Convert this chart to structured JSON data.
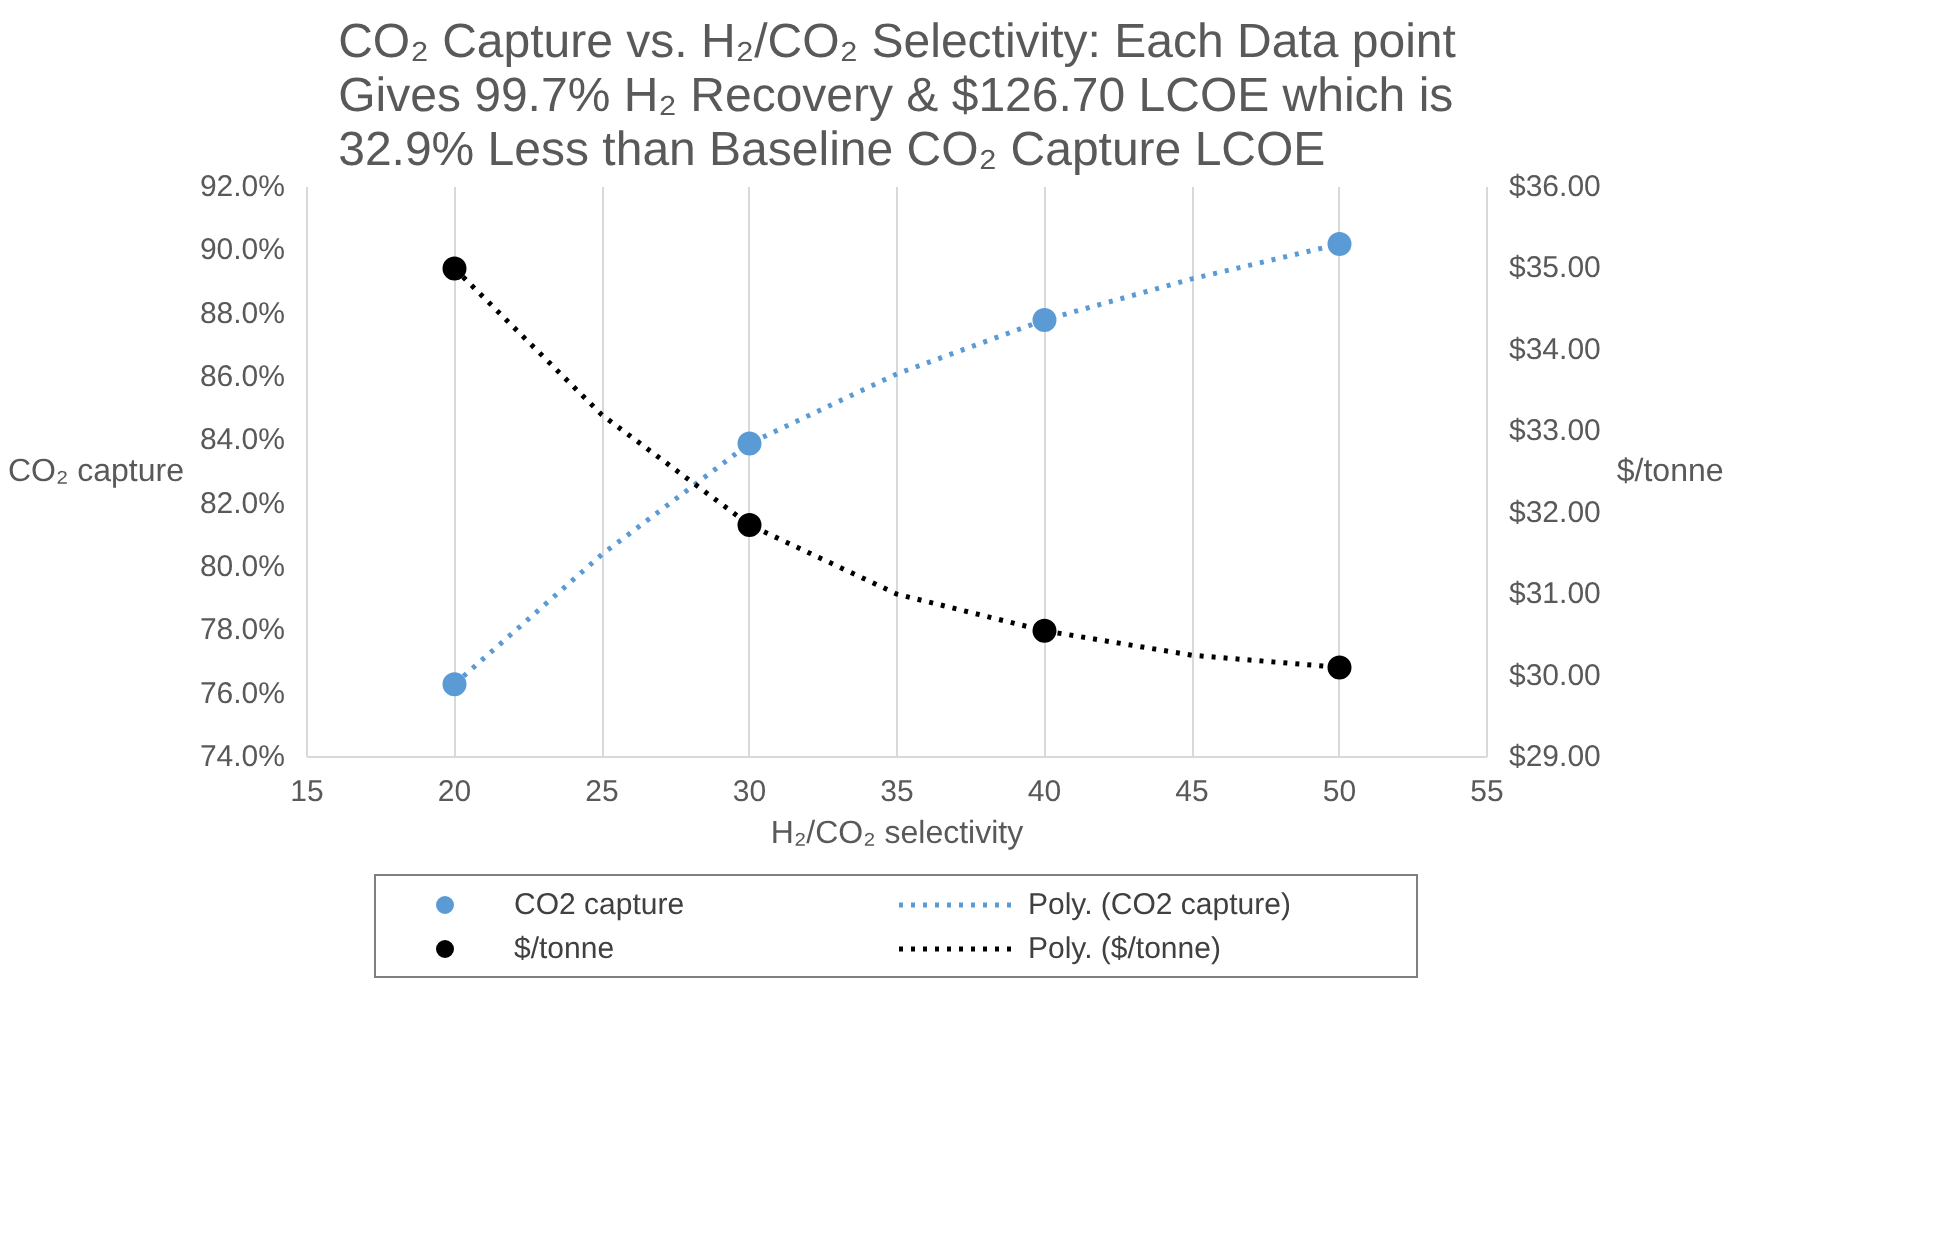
{
  "chart_data": {
    "type": "scatter",
    "title": "CO₂ Capture vs. H₂/CO₂ Selectivity: Each Data point\nGives 99.7% H₂ Recovery & $126.70 LCOE which is\n32.9% Less than Baseline CO₂ Capture LCOE",
    "xlabel": "H₂/CO₂ selectivity",
    "ylabel": "CO₂ capture",
    "y2label": "$/tonne",
    "x": [
      20,
      30,
      40,
      50
    ],
    "series": [
      {
        "name": "CO2 capture",
        "color": "#5b9bd5",
        "marker": "circle",
        "values": [
          76.3,
          83.9,
          87.8,
          90.2
        ]
      },
      {
        "name": "$/tonne",
        "color": "#000000",
        "marker": "circle",
        "axis": "y2",
        "values": [
          35.0,
          31.85,
          30.55,
          30.1
        ]
      },
      {
        "name": "Poly. (CO2 capture)",
        "type": "line",
        "color": "#5b9bd5",
        "marker": "none",
        "line_style": "dotted",
        "x": [
          20,
          25,
          30,
          35,
          40,
          45,
          50
        ],
        "values": [
          76.3,
          80.4,
          83.9,
          86.1,
          87.8,
          89.1,
          90.2
        ]
      },
      {
        "name": "Poly. ($/tonne)",
        "type": "line",
        "color": "#000000",
        "marker": "none",
        "line_style": "dotted",
        "axis": "y2",
        "x": [
          20,
          25,
          30,
          35,
          40,
          45,
          50
        ],
        "values": [
          35.0,
          33.2,
          31.85,
          31.0,
          30.55,
          30.25,
          30.1
        ]
      }
    ],
    "xlim": [
      15,
      55
    ],
    "xticks": [
      15,
      20,
      25,
      30,
      35,
      40,
      45,
      50,
      55
    ],
    "ylim": [
      74,
      92
    ],
    "yticks": [
      {
        "value": 74,
        "label": "74.0%"
      },
      {
        "value": 76,
        "label": "76.0%"
      },
      {
        "value": 78,
        "label": "78.0%"
      },
      {
        "value": 80,
        "label": "80.0%"
      },
      {
        "value": 82,
        "label": "82.0%"
      },
      {
        "value": 84,
        "label": "84.0%"
      },
      {
        "value": 86,
        "label": "86.0%"
      },
      {
        "value": 88,
        "label": "88.0%"
      },
      {
        "value": 90,
        "label": "90.0%"
      },
      {
        "value": 92,
        "label": "92.0%"
      }
    ],
    "y2lim": [
      29,
      36
    ],
    "y2ticks": [
      {
        "value": 29,
        "label": "$29.00"
      },
      {
        "value": 30,
        "label": "$30.00"
      },
      {
        "value": 31,
        "label": "$31.00"
      },
      {
        "value": 32,
        "label": "$32.00"
      },
      {
        "value": 33,
        "label": "$33.00"
      },
      {
        "value": 34,
        "label": "$34.00"
      },
      {
        "value": 35,
        "label": "$35.00"
      },
      {
        "value": 36,
        "label": "$36.00"
      }
    ],
    "grid": "x",
    "legend": "bottom"
  }
}
